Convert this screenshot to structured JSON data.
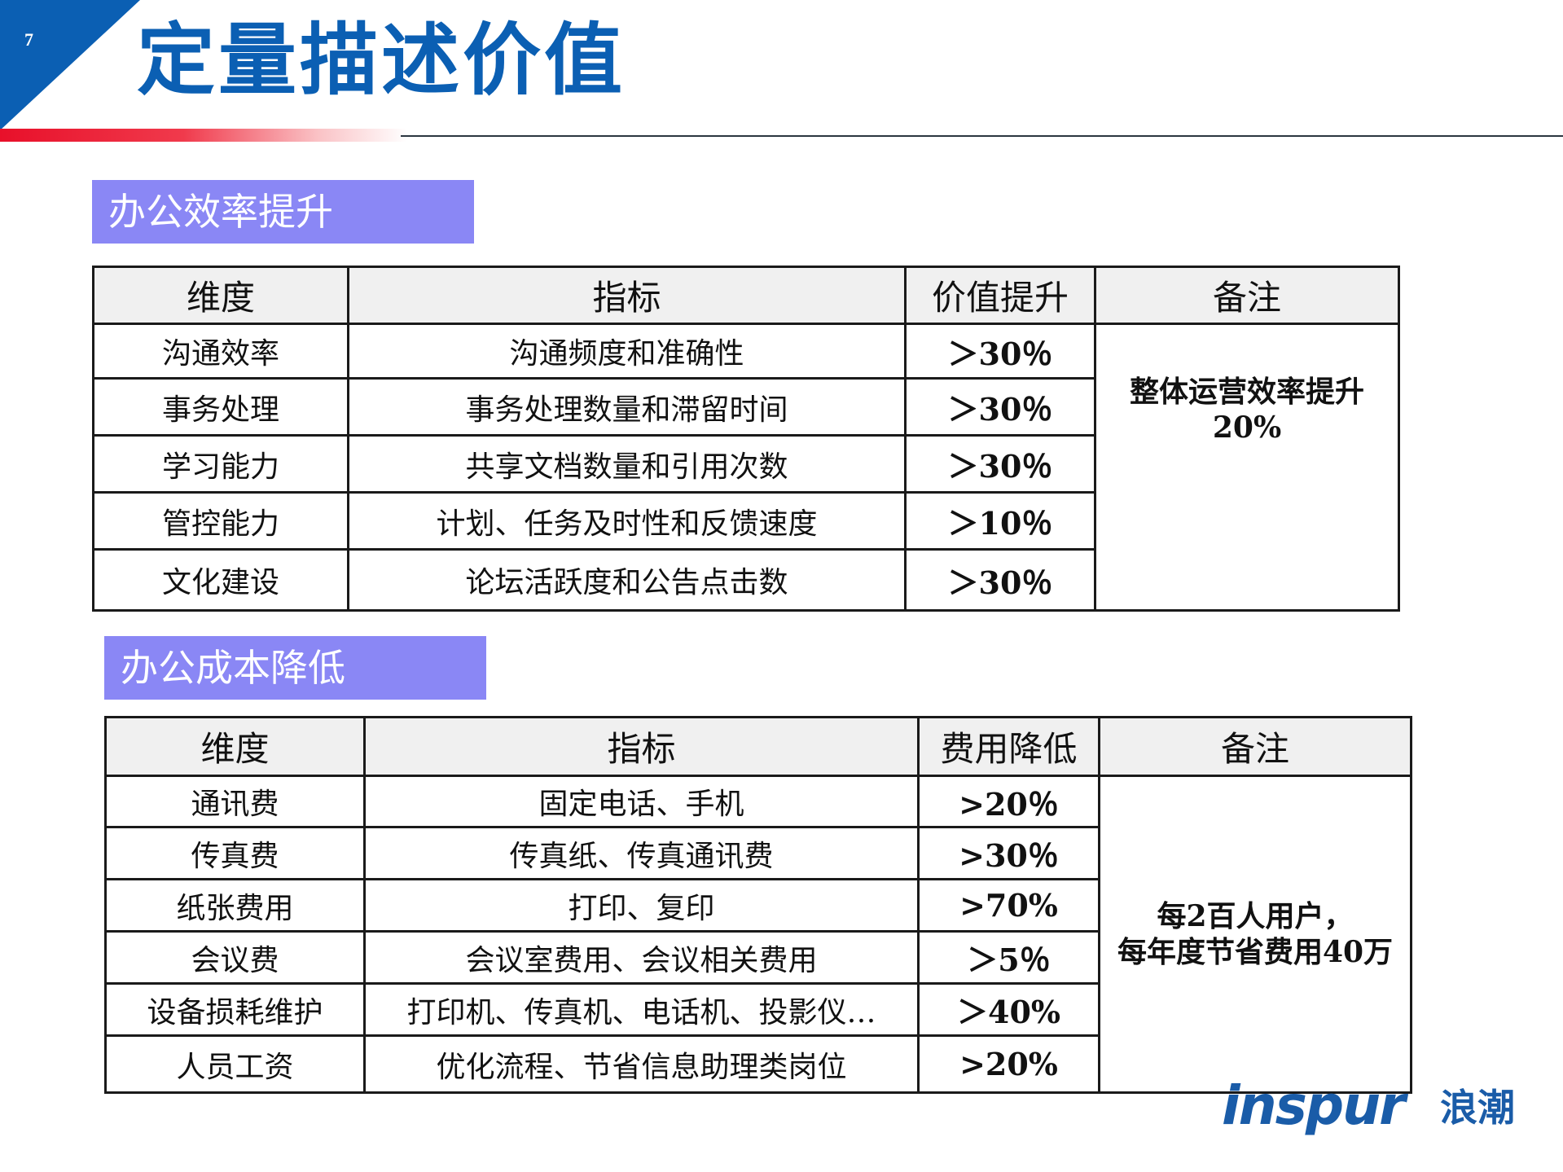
{
  "page": {
    "number": "7",
    "title": "定量描述价值"
  },
  "colors": {
    "title_blue": "#0b5fb3",
    "corner_blue": "#0b5fb3",
    "accent_red": "#e8102a",
    "section_purple": "#8a87f5",
    "header_gray": "#f0f0f0"
  },
  "efficiency": {
    "section_label": "办公效率提升",
    "headers": [
      "维度",
      "指标",
      "价值提升",
      "备注"
    ],
    "rows": [
      {
        "dim": "沟通效率",
        "metric": "沟通频度和准确性",
        "value": "＞30％"
      },
      {
        "dim": "事务处理",
        "metric": "事务处理数量和滞留时间",
        "value": "＞30％"
      },
      {
        "dim": "学习能力",
        "metric": "共享文档数量和引用次数",
        "value": "＞30％"
      },
      {
        "dim": "管控能力",
        "metric": "计划、任务及时性和反馈速度",
        "value": "＞10％"
      },
      {
        "dim": "文化建设",
        "metric": "论坛活跃度和公告点击数",
        "value": "＞30％"
      }
    ],
    "note_line1": "整体运营效率提升",
    "note_line2": "20%"
  },
  "cost": {
    "section_label": "办公成本降低",
    "headers": [
      "维度",
      "指标",
      "费用降低",
      "备注"
    ],
    "rows": [
      {
        "dim": "通讯费",
        "metric": "固定电话、手机",
        "value": ">20％"
      },
      {
        "dim": "传真费",
        "metric": "传真纸、传真通讯费",
        "value": ">30％"
      },
      {
        "dim": "纸张费用",
        "metric": "打印、复印",
        "value": ">70%"
      },
      {
        "dim": "会议费",
        "metric": "会议室费用、会议相关费用",
        "value": "＞5％"
      },
      {
        "dim": "设备损耗维护",
        "metric": "打印机、传真机、电话机、投影仪…",
        "value": "＞40%"
      },
      {
        "dim": "人员工资",
        "metric": "优化流程、节省信息助理类岗位",
        "value": ">20%"
      }
    ],
    "note_line1": "每2百人用户，",
    "note_line2": "每年度节省费用40万"
  },
  "logo": {
    "icon": "inspur-logo",
    "latin": "inspur",
    "chinese": "浪潮"
  }
}
